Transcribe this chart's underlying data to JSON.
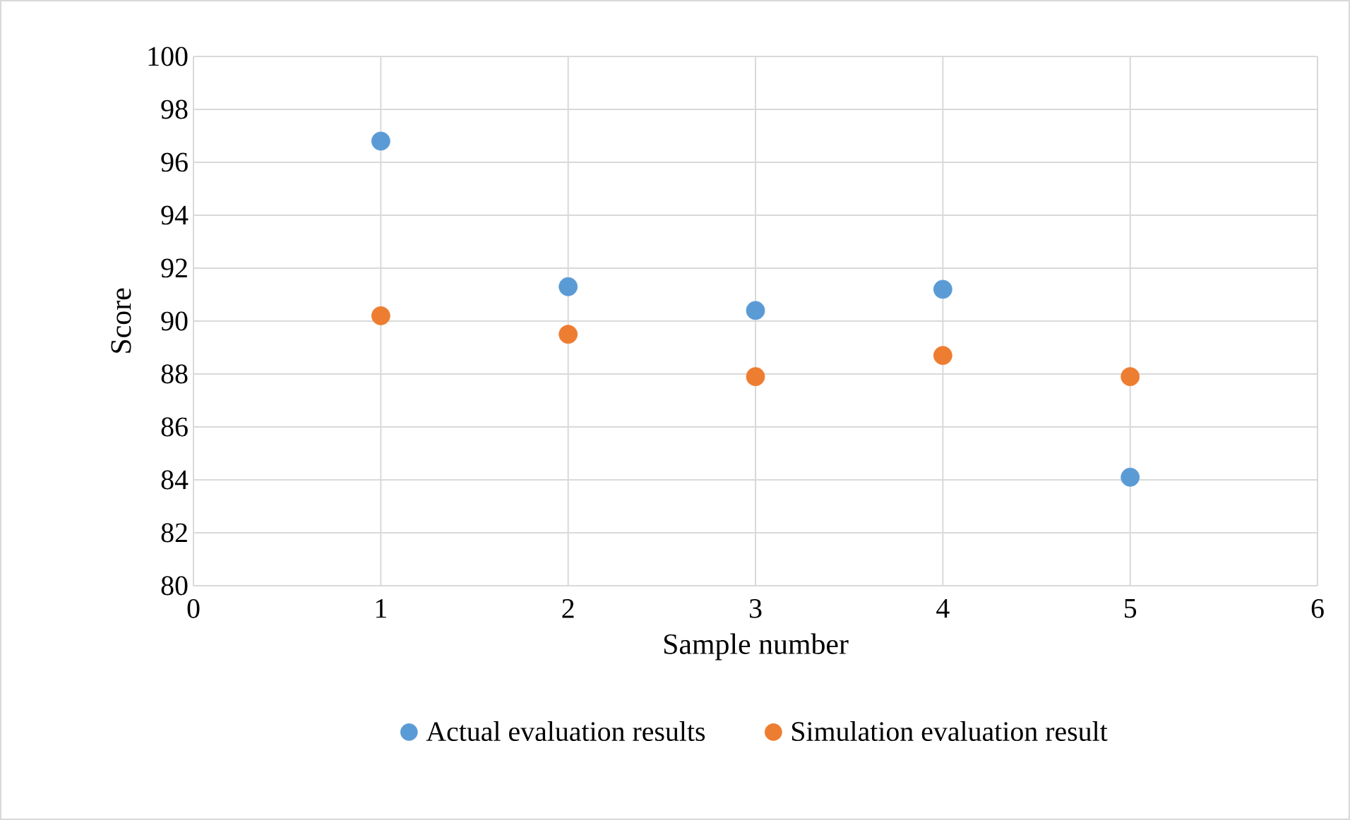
{
  "chart_data": {
    "type": "scatter",
    "xlabel": "Sample number",
    "ylabel": "Score",
    "xlim": [
      0,
      6
    ],
    "xticks": [
      0,
      1,
      2,
      3,
      4,
      5,
      6
    ],
    "ylim": [
      80,
      100
    ],
    "yticks": [
      80,
      82,
      84,
      86,
      88,
      90,
      92,
      94,
      96,
      98,
      100
    ],
    "grid": true,
    "legend": "bottom",
    "marker": "circle",
    "series": [
      {
        "name": "Actual evaluation results",
        "color": "#5b9bd5",
        "x": [
          1,
          2,
          3,
          4,
          5
        ],
        "values": [
          96.8,
          91.3,
          90.4,
          91.2,
          84.1
        ]
      },
      {
        "name": "Simulation evaluation result",
        "color": "#ed7d31",
        "x": [
          1,
          2,
          3,
          4,
          5
        ],
        "values": [
          90.2,
          89.5,
          87.9,
          88.7,
          87.9
        ]
      }
    ]
  }
}
